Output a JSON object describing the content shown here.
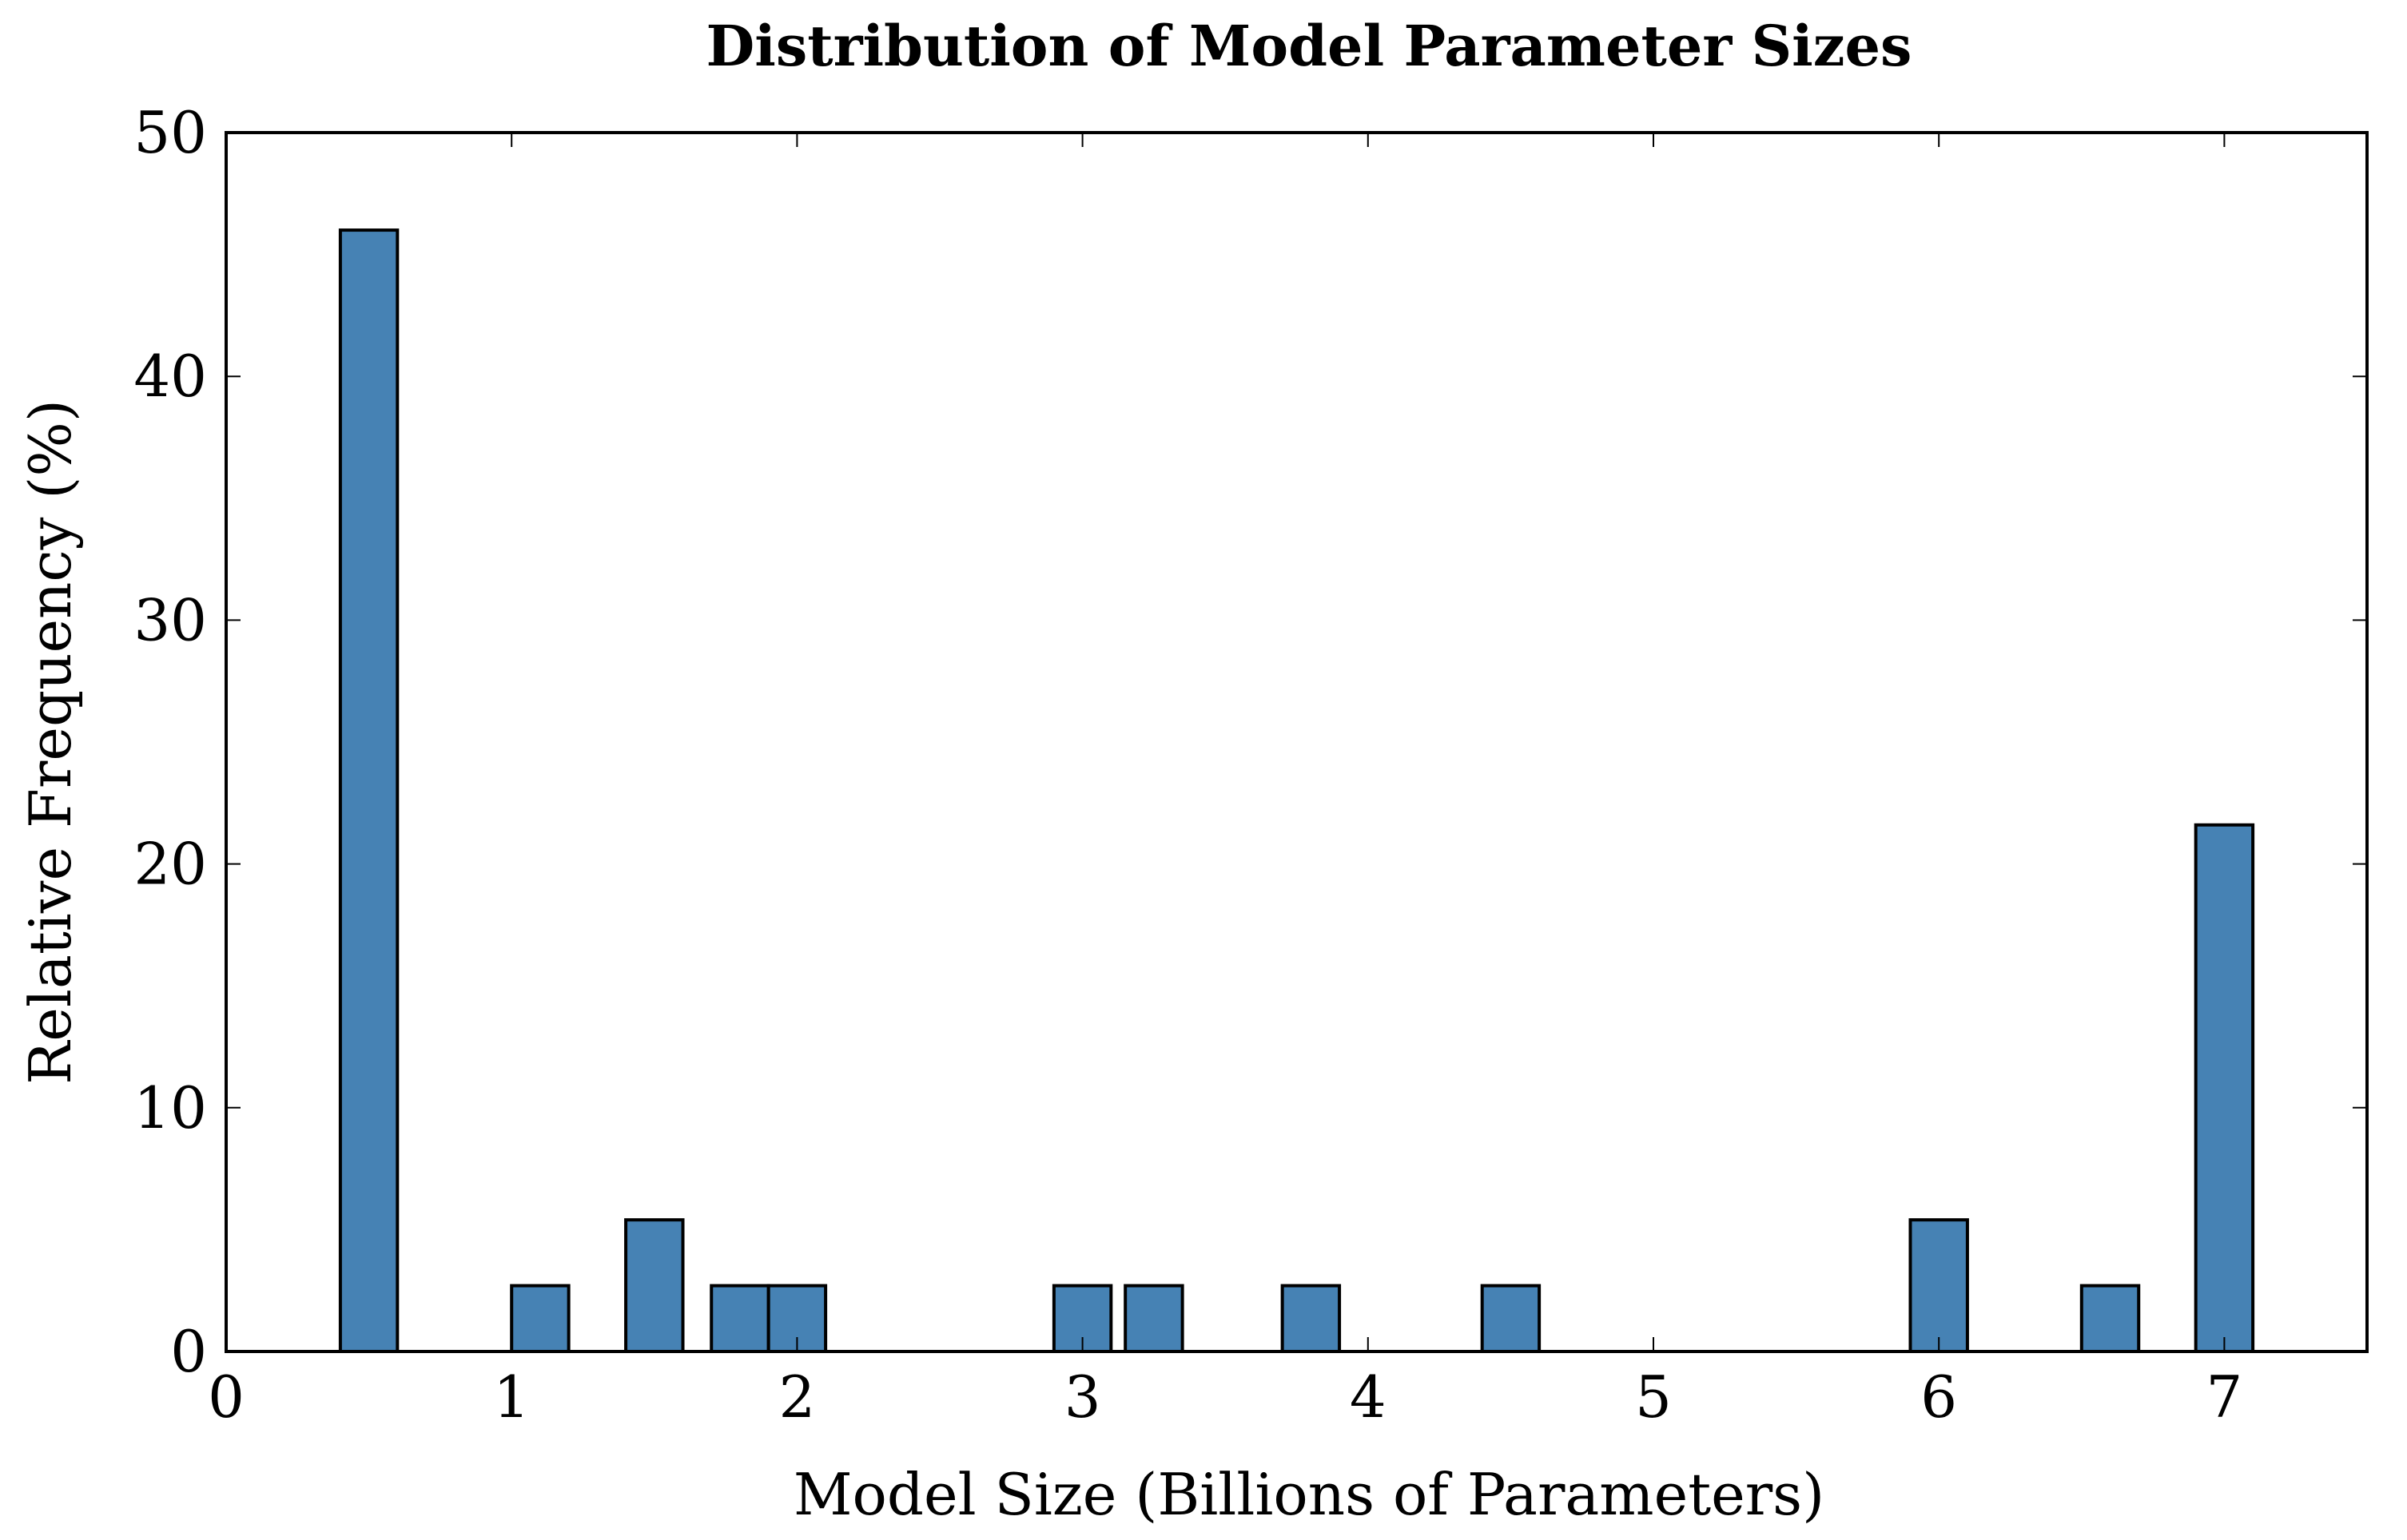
{
  "chart_data": {
    "type": "bar",
    "title": "Distribution of Model Parameter Sizes",
    "xlabel": "Model Size (Billions of Parameters)",
    "ylabel": "Relative Frequency (%)",
    "xlim": [
      0,
      7.5
    ],
    "ylim": [
      0,
      50
    ],
    "xticks": [
      "0",
      "1",
      "2",
      "3",
      "4",
      "5",
      "6",
      "7"
    ],
    "yticks": [
      "0",
      "10",
      "20",
      "30",
      "40",
      "50"
    ],
    "bin_width": 0.2,
    "bar_color": "#4682B4",
    "bars": [
      {
        "x": 0.5,
        "value": 46.0
      },
      {
        "x": 1.1,
        "value": 2.7
      },
      {
        "x": 1.5,
        "value": 5.4
      },
      {
        "x": 1.8,
        "value": 2.7
      },
      {
        "x": 2.0,
        "value": 2.7
      },
      {
        "x": 3.0,
        "value": 2.7
      },
      {
        "x": 3.25,
        "value": 2.7
      },
      {
        "x": 3.8,
        "value": 2.7
      },
      {
        "x": 4.5,
        "value": 2.7
      },
      {
        "x": 6.0,
        "value": 5.4
      },
      {
        "x": 6.6,
        "value": 2.7
      },
      {
        "x": 7.0,
        "value": 21.6
      }
    ]
  }
}
